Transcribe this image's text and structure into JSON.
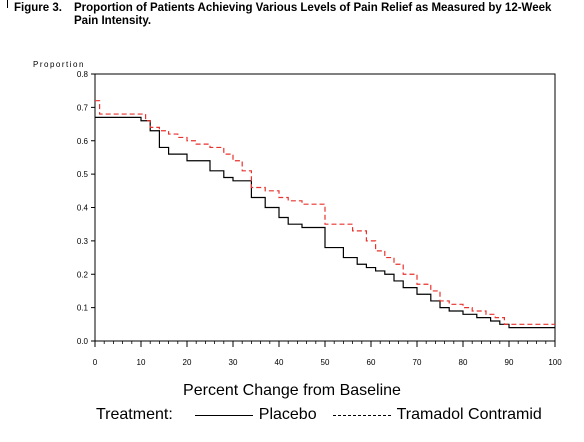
{
  "caption": {
    "number": "Figure 3.",
    "line1": "Proportion of Patients Achieving Various Levels of Pain Relief as Measured by 12-Week",
    "line2": "Pain Intensity."
  },
  "legend": {
    "title": "Treatment:",
    "placebo": "Placebo",
    "tramadol": "Tramadol Contramid"
  },
  "chart_data": {
    "type": "line",
    "ylabel": "Proportion",
    "xlabel": "Percent Change from Baseline",
    "xlim": [
      0,
      100
    ],
    "ylim": [
      0,
      0.8
    ],
    "x_ticks": [
      0,
      10,
      20,
      30,
      40,
      50,
      60,
      70,
      80,
      90,
      100
    ],
    "y_ticks": [
      0.0,
      0.1,
      0.2,
      0.3,
      0.4,
      0.5,
      0.6,
      0.7,
      0.8
    ],
    "x_tick_labels": [
      "0",
      "10",
      "20",
      "30",
      "40",
      "50",
      "60",
      "70",
      "80",
      "90",
      "100"
    ],
    "y_tick_labels": [
      "0.0",
      "0.1",
      "0.2",
      "0.3",
      "0.4",
      "0.5",
      "0.6",
      "0.7",
      "0.8"
    ],
    "grid": false,
    "legend_position": "bottom",
    "series": [
      {
        "name": "Placebo",
        "color": "#000000",
        "style": "solid",
        "step": true,
        "x": [
          0,
          10,
          12,
          14,
          16,
          18,
          20,
          22,
          25,
          28,
          30,
          34,
          37,
          40,
          42,
          45,
          50,
          54,
          57,
          59,
          61,
          63,
          65,
          67,
          70,
          73,
          75,
          77,
          80,
          83,
          86,
          88,
          90,
          100
        ],
        "y": [
          0.67,
          0.66,
          0.63,
          0.58,
          0.56,
          0.56,
          0.54,
          0.54,
          0.51,
          0.49,
          0.48,
          0.43,
          0.4,
          0.37,
          0.35,
          0.34,
          0.28,
          0.25,
          0.23,
          0.22,
          0.21,
          0.2,
          0.18,
          0.16,
          0.14,
          0.12,
          0.1,
          0.09,
          0.08,
          0.07,
          0.06,
          0.05,
          0.04,
          0.04
        ]
      },
      {
        "name": "Tramadol Contramid",
        "color": "#e8322d",
        "style": "dashed",
        "step": true,
        "x": [
          0,
          1,
          11,
          12,
          14,
          16,
          18,
          20,
          22,
          25,
          28,
          30,
          32,
          34,
          37,
          40,
          42,
          45,
          50,
          52,
          56,
          59,
          61,
          63,
          65,
          67,
          70,
          73,
          75,
          77,
          80,
          82,
          85,
          87,
          89,
          100
        ],
        "y": [
          0.72,
          0.68,
          0.66,
          0.64,
          0.63,
          0.62,
          0.61,
          0.6,
          0.59,
          0.58,
          0.56,
          0.54,
          0.51,
          0.46,
          0.45,
          0.43,
          0.42,
          0.41,
          0.35,
          0.35,
          0.33,
          0.3,
          0.27,
          0.25,
          0.23,
          0.2,
          0.17,
          0.15,
          0.12,
          0.11,
          0.1,
          0.09,
          0.08,
          0.07,
          0.05,
          0.05
        ]
      }
    ]
  }
}
